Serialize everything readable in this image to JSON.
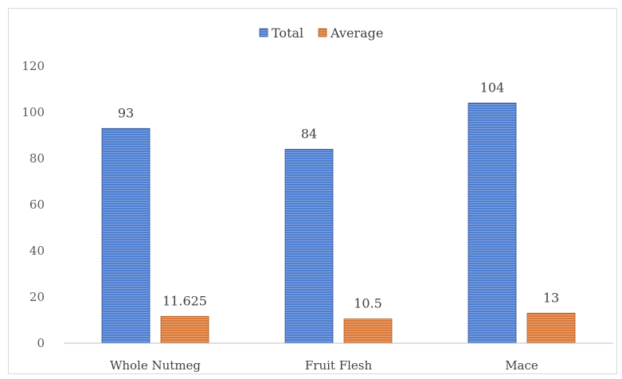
{
  "chart_data": {
    "type": "bar",
    "categories": [
      "Whole Nutmeg",
      "Fruit Flesh",
      "Mace"
    ],
    "series": [
      {
        "name": "Total",
        "values": [
          93,
          84,
          104
        ],
        "labels": [
          "93",
          "84",
          "104"
        ],
        "color": "#4472c4"
      },
      {
        "name": "Average",
        "values": [
          11.625,
          10.5,
          13
        ],
        "labels": [
          "11.625",
          "10.5",
          "13"
        ],
        "color": "#ed7d31"
      }
    ],
    "title": "",
    "xlabel": "",
    "ylabel": "",
    "ylim": [
      0,
      120
    ],
    "yticks": [
      0,
      20,
      40,
      60,
      80,
      100,
      120
    ],
    "grid": false,
    "legend": "top-center"
  }
}
